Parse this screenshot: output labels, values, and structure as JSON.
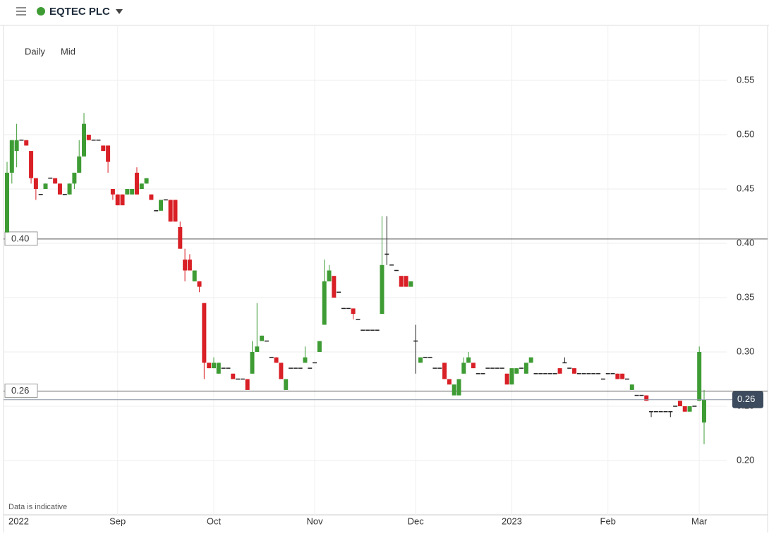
{
  "header": {
    "title": "EQTEC PLC"
  },
  "chart_data": {
    "type": "candlestick",
    "interval": "Daily",
    "price": "Mid",
    "note": "Data is indicative",
    "categories": [
      "2022",
      null,
      null,
      null,
      null,
      null,
      null,
      null,
      null,
      null,
      null,
      null,
      null,
      null,
      null,
      null,
      null,
      null,
      null,
      null,
      null,
      null,
      null,
      "Sep",
      null,
      null,
      null,
      null,
      null,
      null,
      null,
      null,
      null,
      null,
      null,
      null,
      null,
      null,
      null,
      null,
      null,
      null,
      null,
      "Oct",
      null,
      null,
      null,
      null,
      null,
      null,
      null,
      null,
      null,
      null,
      null,
      null,
      null,
      null,
      null,
      null,
      null,
      null,
      null,
      null,
      "Nov",
      null,
      null,
      null,
      null,
      null,
      null,
      null,
      null,
      null,
      null,
      null,
      null,
      null,
      null,
      null,
      null,
      null,
      null,
      null,
      null,
      "Dec",
      null,
      null,
      null,
      null,
      null,
      null,
      null,
      null,
      null,
      null,
      null,
      null,
      null,
      null,
      null,
      null,
      null,
      null,
      null,
      "2023",
      null,
      null,
      null,
      null,
      null,
      null,
      null,
      null,
      null,
      null,
      null,
      null,
      null,
      null,
      null,
      null,
      null,
      null,
      null,
      "Feb",
      null,
      null,
      null,
      null,
      null,
      null,
      null,
      null,
      null,
      null,
      null,
      null,
      null,
      null,
      null,
      null,
      null,
      null,
      "Mar"
    ],
    "ohlc": [
      [
        0.41,
        0.475,
        0.41,
        0.465
      ],
      [
        0.465,
        0.495,
        0.455,
        0.495
      ],
      [
        0.485,
        0.51,
        0.47,
        0.495
      ],
      [
        0.495,
        0.495,
        0.495,
        0.495
      ],
      [
        0.495,
        0.495,
        0.49,
        0.49
      ],
      [
        0.485,
        0.485,
        0.455,
        0.46
      ],
      [
        0.46,
        0.46,
        0.44,
        0.45
      ],
      [
        0.445,
        0.445,
        0.445,
        0.445
      ],
      [
        0.45,
        0.455,
        0.45,
        0.455
      ],
      [
        0.46,
        0.46,
        0.46,
        0.46
      ],
      [
        0.46,
        0.46,
        0.455,
        0.455
      ],
      [
        0.455,
        0.455,
        0.445,
        0.445
      ],
      [
        0.445,
        0.445,
        0.445,
        0.445
      ],
      [
        0.445,
        0.455,
        0.445,
        0.455
      ],
      [
        0.455,
        0.465,
        0.45,
        0.465
      ],
      [
        0.465,
        0.495,
        0.465,
        0.48
      ],
      [
        0.48,
        0.52,
        0.48,
        0.51
      ],
      [
        0.5,
        0.5,
        0.495,
        0.495
      ],
      [
        0.495,
        0.495,
        0.495,
        0.495
      ],
      [
        0.495,
        0.495,
        0.495,
        0.495
      ],
      [
        0.49,
        0.49,
        0.485,
        0.485
      ],
      [
        0.49,
        0.49,
        0.465,
        0.475
      ],
      [
        0.45,
        0.45,
        0.44,
        0.445
      ],
      [
        0.445,
        0.445,
        0.435,
        0.435
      ],
      [
        0.445,
        0.445,
        0.435,
        0.435
      ],
      [
        0.445,
        0.45,
        0.445,
        0.45
      ],
      [
        0.445,
        0.45,
        0.445,
        0.45
      ],
      [
        0.465,
        0.47,
        0.445,
        0.445
      ],
      [
        0.45,
        0.455,
        0.45,
        0.455
      ],
      [
        0.455,
        0.46,
        0.455,
        0.46
      ],
      [
        0.445,
        0.445,
        0.44,
        0.44
      ],
      [
        0.43,
        0.43,
        0.43,
        0.43
      ],
      [
        0.43,
        0.44,
        0.43,
        0.44
      ],
      [
        0.44,
        0.44,
        0.44,
        0.44
      ],
      [
        0.44,
        0.44,
        0.42,
        0.42
      ],
      [
        0.44,
        0.44,
        0.42,
        0.42
      ],
      [
        0.415,
        0.42,
        0.395,
        0.395
      ],
      [
        0.385,
        0.395,
        0.365,
        0.375
      ],
      [
        0.385,
        0.39,
        0.375,
        0.375
      ],
      [
        0.365,
        0.375,
        0.365,
        0.375
      ],
      [
        0.365,
        0.365,
        0.355,
        0.36
      ],
      [
        0.345,
        0.345,
        0.275,
        0.29
      ],
      [
        0.29,
        0.29,
        0.285,
        0.285
      ],
      [
        0.285,
        0.295,
        0.285,
        0.29
      ],
      [
        0.28,
        0.29,
        0.28,
        0.29
      ],
      [
        0.285,
        0.285,
        0.285,
        0.285
      ],
      [
        0.285,
        0.285,
        0.285,
        0.285
      ],
      [
        0.28,
        0.28,
        0.275,
        0.275
      ],
      [
        0.275,
        0.275,
        0.275,
        0.275
      ],
      [
        0.275,
        0.275,
        0.275,
        0.275
      ],
      [
        0.275,
        0.275,
        0.265,
        0.265
      ],
      [
        0.28,
        0.31,
        0.28,
        0.3
      ],
      [
        0.3,
        0.345,
        0.3,
        0.305
      ],
      [
        0.31,
        0.315,
        0.31,
        0.315
      ],
      [
        0.31,
        0.31,
        0.31,
        0.31
      ],
      [
        0.295,
        0.295,
        0.295,
        0.295
      ],
      [
        0.295,
        0.295,
        0.29,
        0.29
      ],
      [
        0.29,
        0.29,
        0.275,
        0.275
      ],
      [
        0.265,
        0.275,
        0.265,
        0.275
      ],
      [
        0.285,
        0.285,
        0.285,
        0.285
      ],
      [
        0.285,
        0.285,
        0.285,
        0.285
      ],
      [
        0.285,
        0.285,
        0.285,
        0.285
      ],
      [
        0.29,
        0.305,
        0.29,
        0.295
      ],
      [
        0.285,
        0.285,
        0.285,
        0.285
      ],
      [
        0.29,
        0.29,
        0.29,
        0.29
      ],
      [
        0.3,
        0.31,
        0.3,
        0.31
      ],
      [
        0.325,
        0.385,
        0.325,
        0.365
      ],
      [
        0.365,
        0.38,
        0.365,
        0.375
      ],
      [
        0.37,
        0.37,
        0.35,
        0.35
      ],
      [
        0.355,
        0.355,
        0.355,
        0.355
      ],
      [
        0.34,
        0.34,
        0.34,
        0.34
      ],
      [
        0.34,
        0.34,
        0.34,
        0.34
      ],
      [
        0.34,
        0.34,
        0.33,
        0.335
      ],
      [
        0.33,
        0.33,
        0.33,
        0.33
      ],
      [
        0.32,
        0.32,
        0.32,
        0.32
      ],
      [
        0.32,
        0.32,
        0.32,
        0.32
      ],
      [
        0.32,
        0.32,
        0.32,
        0.32
      ],
      [
        0.32,
        0.32,
        0.32,
        0.32
      ],
      [
        0.335,
        0.425,
        0.335,
        0.38
      ],
      [
        0.39,
        0.425,
        0.38,
        0.39
      ],
      [
        0.38,
        0.38,
        0.38,
        0.38
      ],
      [
        0.375,
        0.375,
        0.375,
        0.375
      ],
      [
        0.37,
        0.37,
        0.36,
        0.36
      ],
      [
        0.37,
        0.37,
        0.36,
        0.36
      ],
      [
        0.36,
        0.365,
        0.36,
        0.365
      ],
      [
        0.31,
        0.325,
        0.28,
        0.31
      ],
      [
        0.29,
        0.295,
        0.29,
        0.295
      ],
      [
        0.295,
        0.295,
        0.295,
        0.295
      ],
      [
        0.295,
        0.295,
        0.295,
        0.295
      ],
      [
        0.285,
        0.285,
        0.285,
        0.285
      ],
      [
        0.285,
        0.285,
        0.285,
        0.285
      ],
      [
        0.29,
        0.29,
        0.275,
        0.275
      ],
      [
        0.275,
        0.275,
        0.27,
        0.27
      ],
      [
        0.26,
        0.27,
        0.26,
        0.27
      ],
      [
        0.26,
        0.275,
        0.26,
        0.275
      ],
      [
        0.28,
        0.295,
        0.28,
        0.29
      ],
      [
        0.29,
        0.3,
        0.29,
        0.295
      ],
      [
        0.29,
        0.29,
        0.285,
        0.285
      ],
      [
        0.28,
        0.28,
        0.28,
        0.28
      ],
      [
        0.28,
        0.28,
        0.28,
        0.28
      ],
      [
        0.285,
        0.285,
        0.285,
        0.285
      ],
      [
        0.285,
        0.285,
        0.285,
        0.285
      ],
      [
        0.285,
        0.285,
        0.285,
        0.285
      ],
      [
        0.285,
        0.285,
        0.285,
        0.285
      ],
      [
        0.28,
        0.28,
        0.27,
        0.27
      ],
      [
        0.27,
        0.285,
        0.27,
        0.285
      ],
      [
        0.28,
        0.285,
        0.28,
        0.285
      ],
      [
        0.285,
        0.285,
        0.285,
        0.285
      ],
      [
        0.28,
        0.29,
        0.28,
        0.29
      ],
      [
        0.29,
        0.295,
        0.29,
        0.295
      ],
      [
        0.28,
        0.28,
        0.28,
        0.28
      ],
      [
        0.28,
        0.28,
        0.28,
        0.28
      ],
      [
        0.28,
        0.28,
        0.28,
        0.28
      ],
      [
        0.28,
        0.28,
        0.28,
        0.28
      ],
      [
        0.28,
        0.28,
        0.28,
        0.28
      ],
      [
        0.285,
        0.285,
        0.28,
        0.28
      ],
      [
        0.29,
        0.295,
        0.29,
        0.29
      ],
      [
        0.285,
        0.285,
        0.285,
        0.285
      ],
      [
        0.285,
        0.285,
        0.28,
        0.28
      ],
      [
        0.28,
        0.28,
        0.28,
        0.28
      ],
      [
        0.28,
        0.28,
        0.28,
        0.28
      ],
      [
        0.28,
        0.28,
        0.28,
        0.28
      ],
      [
        0.28,
        0.28,
        0.28,
        0.28
      ],
      [
        0.28,
        0.28,
        0.28,
        0.28
      ],
      [
        0.275,
        0.275,
        0.275,
        0.275
      ],
      [
        0.28,
        0.28,
        0.28,
        0.28
      ],
      [
        0.28,
        0.28,
        0.28,
        0.28
      ],
      [
        0.28,
        0.28,
        0.275,
        0.275
      ],
      [
        0.28,
        0.28,
        0.275,
        0.275
      ],
      [
        0.275,
        0.275,
        0.275,
        0.275
      ],
      [
        0.265,
        0.27,
        0.265,
        0.27
      ],
      [
        0.26,
        0.26,
        0.26,
        0.26
      ],
      [
        0.26,
        0.26,
        0.26,
        0.26
      ],
      [
        0.26,
        0.26,
        0.255,
        0.255
      ],
      [
        0.245,
        0.245,
        0.24,
        0.245
      ],
      [
        0.245,
        0.245,
        0.245,
        0.245
      ],
      [
        0.245,
        0.245,
        0.245,
        0.245
      ],
      [
        0.245,
        0.245,
        0.245,
        0.245
      ],
      [
        0.245,
        0.245,
        0.24,
        0.245
      ],
      [
        0.25,
        0.25,
        0.25,
        0.25
      ],
      [
        0.255,
        0.255,
        0.25,
        0.25
      ],
      [
        0.25,
        0.25,
        0.245,
        0.245
      ],
      [
        0.245,
        0.25,
        0.245,
        0.25
      ],
      [
        0.25,
        0.25,
        0.25,
        0.25
      ],
      [
        0.255,
        0.305,
        0.255,
        0.3
      ],
      [
        0.235,
        0.265,
        0.215,
        0.256
      ]
    ],
    "up_color": "#3f9c35",
    "down_color": "#d92027",
    "flat_color": "#222222",
    "ylim": [
      0.15,
      0.6
    ],
    "yticks": [
      {
        "value": 0.2,
        "label": "0.20"
      },
      0.25,
      {
        "value": 0.3,
        "label": "0.30"
      },
      0.35,
      {
        "value": 0.4,
        "label": "0.40"
      },
      0.45,
      {
        "value": 0.5,
        "label": "0.50"
      },
      0.55
    ],
    "grid": true,
    "price_lines": [
      {
        "value": 0.404,
        "label": "0.40"
      },
      {
        "value": 0.264,
        "label": "0.26"
      }
    ],
    "last_price": {
      "value": 0.256,
      "label": "0.26"
    }
  }
}
